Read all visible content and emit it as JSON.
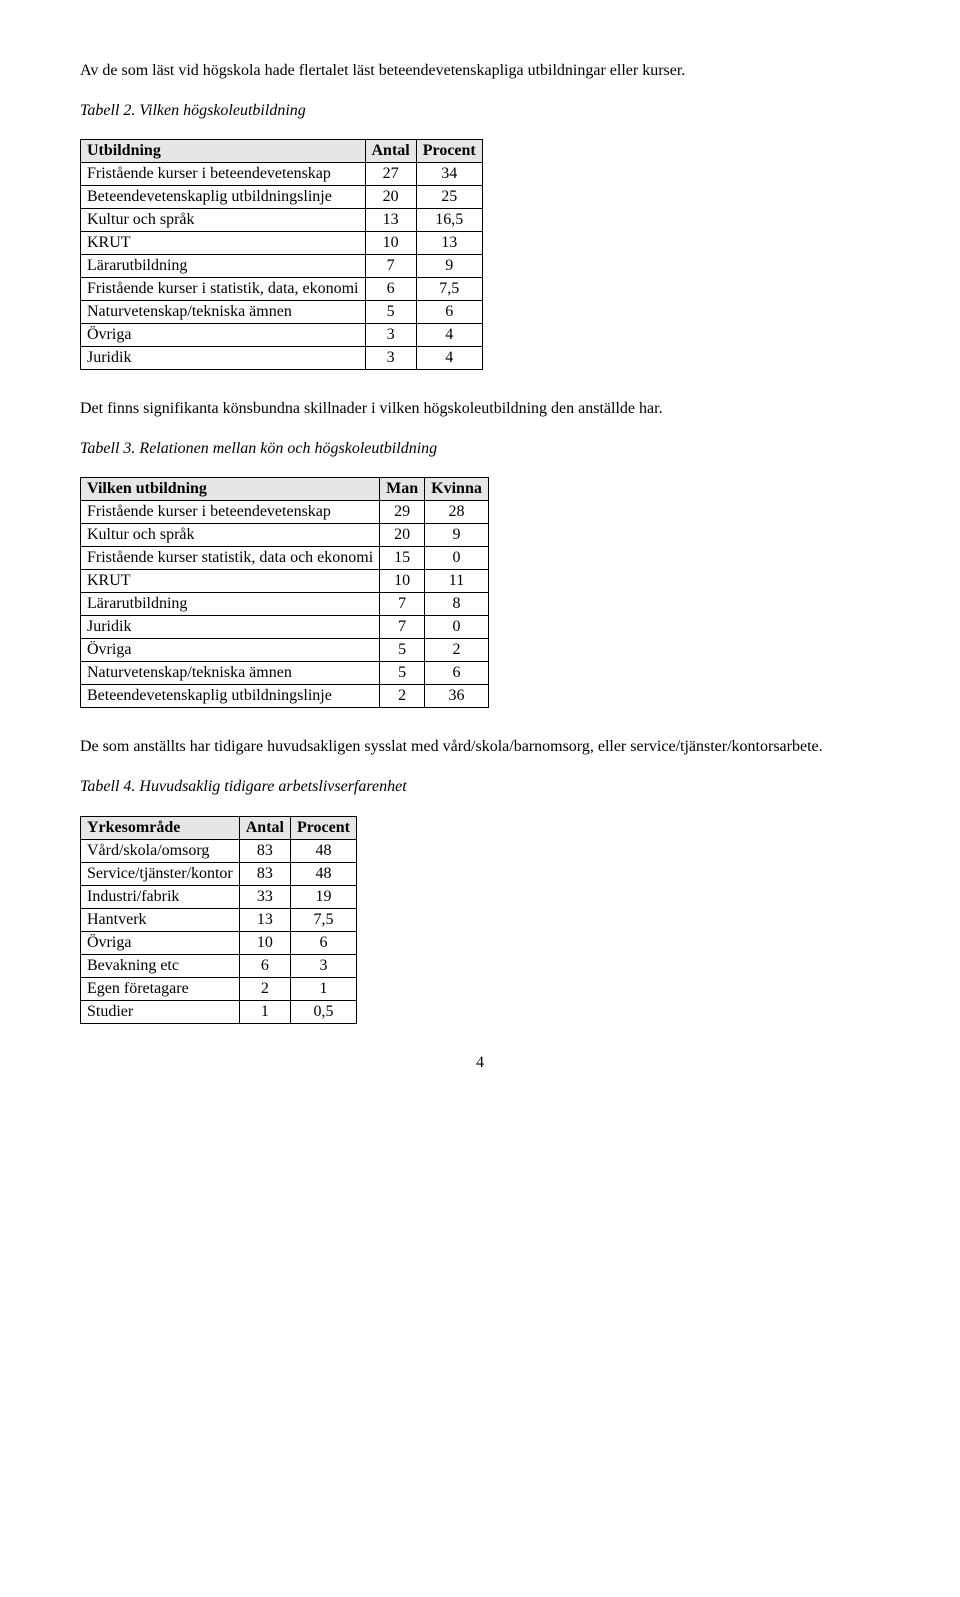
{
  "p1": "Av de som läst vid högskola hade flertalet läst beteendevetenskapliga utbildningar eller kurser.",
  "caption1": "Tabell 2. Vilken högskoleutbildning",
  "table1": {
    "headers": [
      "Utbildning",
      "Antal",
      "Procent"
    ],
    "rows": [
      [
        "Fristående kurser i beteendevetenskap",
        "27",
        "34"
      ],
      [
        "Beteendevetenskaplig utbildningslinje",
        "20",
        "25"
      ],
      [
        "Kultur och språk",
        "13",
        "16,5"
      ],
      [
        "KRUT",
        "10",
        "13"
      ],
      [
        "Lärarutbildning",
        "7",
        "9"
      ],
      [
        "Fristående kurser i statistik, data, ekonomi",
        "6",
        "7,5"
      ],
      [
        "Naturvetenskap/tekniska ämnen",
        "5",
        "6"
      ],
      [
        "Övriga",
        "3",
        "4"
      ],
      [
        "Juridik",
        "3",
        "4"
      ]
    ]
  },
  "p2": "Det finns signifikanta könsbundna skillnader i vilken högskoleutbildning den anställde har.",
  "caption2": "Tabell 3. Relationen mellan kön och högskoleutbildning",
  "table2": {
    "headers": [
      "Vilken utbildning",
      "Man",
      "Kvinna"
    ],
    "rows": [
      [
        "Fristående kurser i beteendevetenskap",
        "29",
        "28"
      ],
      [
        "Kultur och språk",
        "20",
        "9"
      ],
      [
        "Fristående kurser statistik, data och ekonomi",
        "15",
        "0"
      ],
      [
        "KRUT",
        "10",
        "11"
      ],
      [
        "Lärarutbildning",
        "7",
        "8"
      ],
      [
        "Juridik",
        "7",
        "0"
      ],
      [
        "Övriga",
        "5",
        "2"
      ],
      [
        "Naturvetenskap/tekniska ämnen",
        "5",
        "6"
      ],
      [
        "Beteendevetenskaplig utbildningslinje",
        "2",
        "36"
      ]
    ]
  },
  "p3": "De som anställts har tidigare huvudsakligen sysslat med vård/skola/barnomsorg, eller service/tjänster/kontorsarbete.",
  "caption3": "Tabell 4. Huvudsaklig tidigare arbetslivserfarenhet",
  "table3": {
    "headers": [
      "Yrkesområde",
      "Antal",
      "Procent"
    ],
    "rows": [
      [
        "Vård/skola/omsorg",
        "83",
        "48"
      ],
      [
        "Service/tjänster/kontor",
        "83",
        "48"
      ],
      [
        "Industri/fabrik",
        "33",
        "19"
      ],
      [
        "Hantverk",
        "13",
        "7,5"
      ],
      [
        "Övriga",
        "10",
        "6"
      ],
      [
        "Bevakning etc",
        "6",
        "3"
      ],
      [
        "Egen företagare",
        "2",
        "1"
      ],
      [
        "Studier",
        "1",
        "0,5"
      ]
    ]
  },
  "pageNumber": "4"
}
